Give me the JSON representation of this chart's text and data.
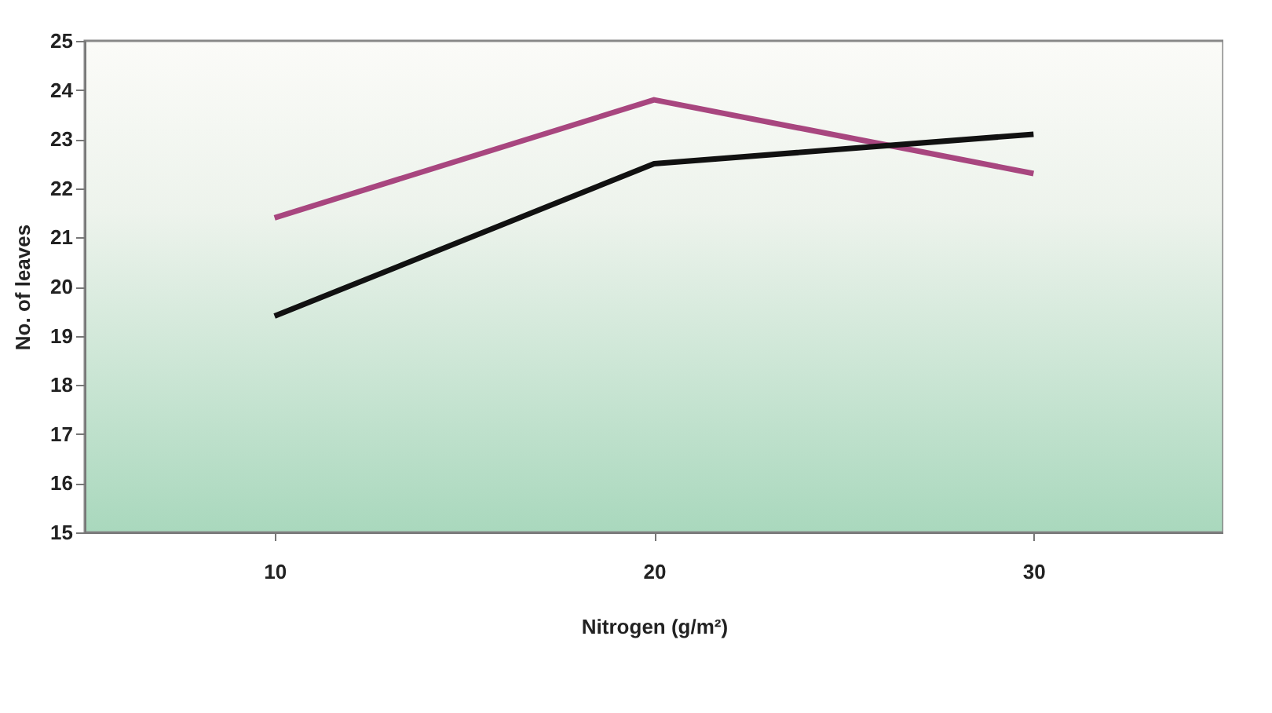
{
  "chart_data": {
    "type": "line",
    "xlabel": "Nitrogen (g/m²)",
    "ylabel": "No. of leaves",
    "categories": [
      "10",
      "20",
      "30"
    ],
    "series": [
      {
        "color": "#a8467f",
        "values": [
          21.4,
          23.8,
          22.3
        ]
      },
      {
        "color": "#111111",
        "values": [
          19.4,
          22.5,
          23.1
        ]
      }
    ],
    "ylim": [
      15,
      25
    ],
    "yticks": [
      15,
      16,
      17,
      18,
      19,
      20,
      21,
      22,
      23,
      24,
      25
    ],
    "grid": false,
    "legend": false,
    "marker": "none",
    "line_style": "solid"
  }
}
